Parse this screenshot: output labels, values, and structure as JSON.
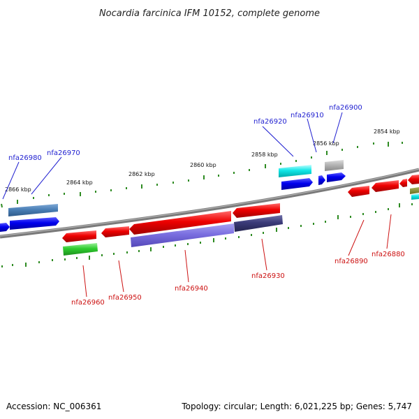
{
  "title": "Nocardia farcinica IFM 10152, complete genome",
  "footer": {
    "accession": "Accession: NC_006361",
    "summary": "Topology: circular; Length: 6,021,225 bp; Genes: 5,747"
  },
  "scale_labels": [
    "2866 kbp",
    "2864 kbp",
    "2862 kbp",
    "2860 kbp",
    "2858 kbp",
    "2856 kbp",
    "2854 kbp"
  ],
  "gene_labels_top": [
    "nfa26980",
    "nfa26970",
    "nfa26920",
    "nfa26910",
    "nfa26900"
  ],
  "gene_labels_bottom": [
    "nfa26960",
    "nfa26950",
    "nfa26940",
    "nfa26930",
    "nfa26890",
    "nfa26880"
  ],
  "colors": {
    "top_label": "#1f1fd0",
    "bottom_label": "#cc1111",
    "tick": "#2e8b22",
    "backbone": "#808080"
  }
}
